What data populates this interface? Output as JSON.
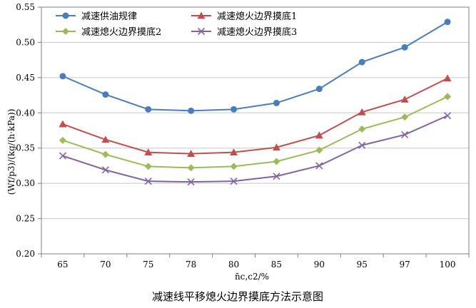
{
  "chart_data": {
    "type": "line",
    "title": "减速线平移熄火边界摸底方法示意图",
    "xlabel": "n̄c,c2/%",
    "ylabel": "(Wf/p3)/(kg/(h·kPa))",
    "categories": [
      "65",
      "70",
      "75",
      "78",
      "80",
      "85",
      "90",
      "95",
      "97",
      "100"
    ],
    "ylim": [
      0.2,
      0.55
    ],
    "yticks": [
      "0.20",
      "0.25",
      "0.30",
      "0.35",
      "0.40",
      "0.45",
      "0.50",
      "0.55"
    ],
    "grid": "horizontal",
    "legend_position": "top-left",
    "series": [
      {
        "name": "减速供油规律",
        "color": "#4a7ebb",
        "marker": "circle",
        "values": [
          0.452,
          0.426,
          0.405,
          0.403,
          0.405,
          0.414,
          0.434,
          0.472,
          0.493,
          0.529
        ]
      },
      {
        "name": "减速熄火边界摸底1",
        "color": "#c0504d",
        "marker": "triangle",
        "values": [
          0.384,
          0.362,
          0.344,
          0.342,
          0.344,
          0.351,
          0.368,
          0.401,
          0.419,
          0.449
        ]
      },
      {
        "name": "减速熄火边界摸底2",
        "color": "#9bbb59",
        "marker": "diamond",
        "values": [
          0.361,
          0.341,
          0.324,
          0.322,
          0.324,
          0.331,
          0.347,
          0.377,
          0.394,
          0.423
        ]
      },
      {
        "name": "减速熄火边界摸底3",
        "color": "#8064a2",
        "marker": "x",
        "values": [
          0.339,
          0.319,
          0.303,
          0.302,
          0.303,
          0.31,
          0.325,
          0.354,
          0.369,
          0.396
        ]
      }
    ]
  }
}
